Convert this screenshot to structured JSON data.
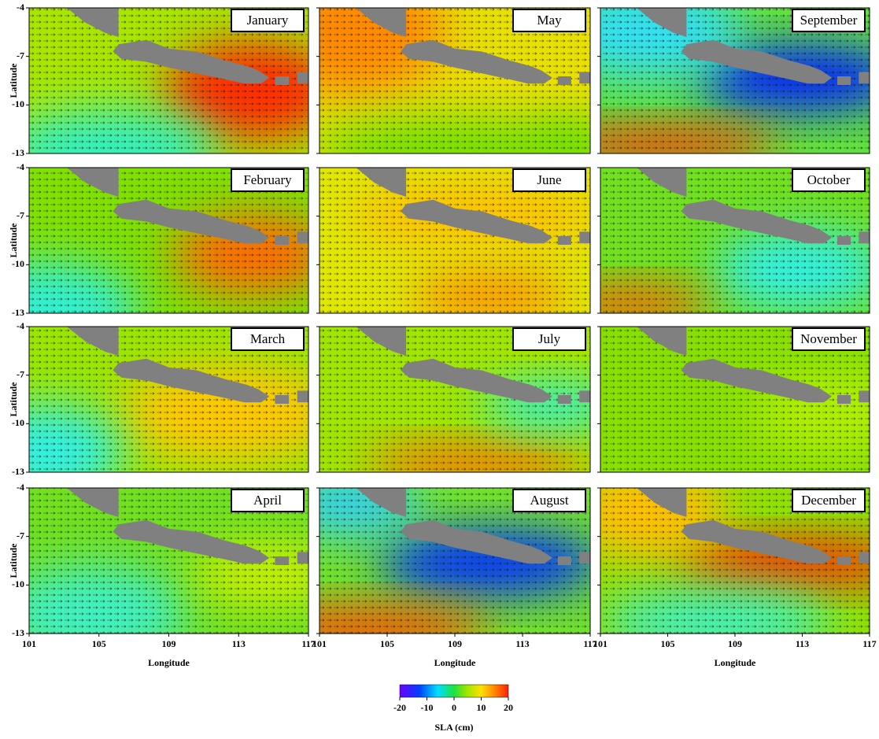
{
  "panels": [
    {
      "month": "January"
    },
    {
      "month": "February"
    },
    {
      "month": "March"
    },
    {
      "month": "April"
    },
    {
      "month": "May"
    },
    {
      "month": "June"
    },
    {
      "month": "July"
    },
    {
      "month": "August"
    },
    {
      "month": "September"
    },
    {
      "month": "October"
    },
    {
      "month": "November"
    },
    {
      "month": "December"
    }
  ],
  "axes": {
    "lat_label": "Latitude",
    "lon_label": "Longitude",
    "lat_range": [
      -4,
      -13
    ],
    "lat_ticks": [
      -4,
      -7,
      -10,
      -13
    ],
    "lon_range": [
      101,
      117
    ],
    "lon_ticks": [
      101,
      105,
      109,
      113,
      117
    ]
  },
  "colorbar": {
    "label": "SLA (cm)",
    "range": [
      -20,
      20
    ],
    "ticks": [
      -20,
      -10,
      0,
      10,
      20
    ]
  }
}
